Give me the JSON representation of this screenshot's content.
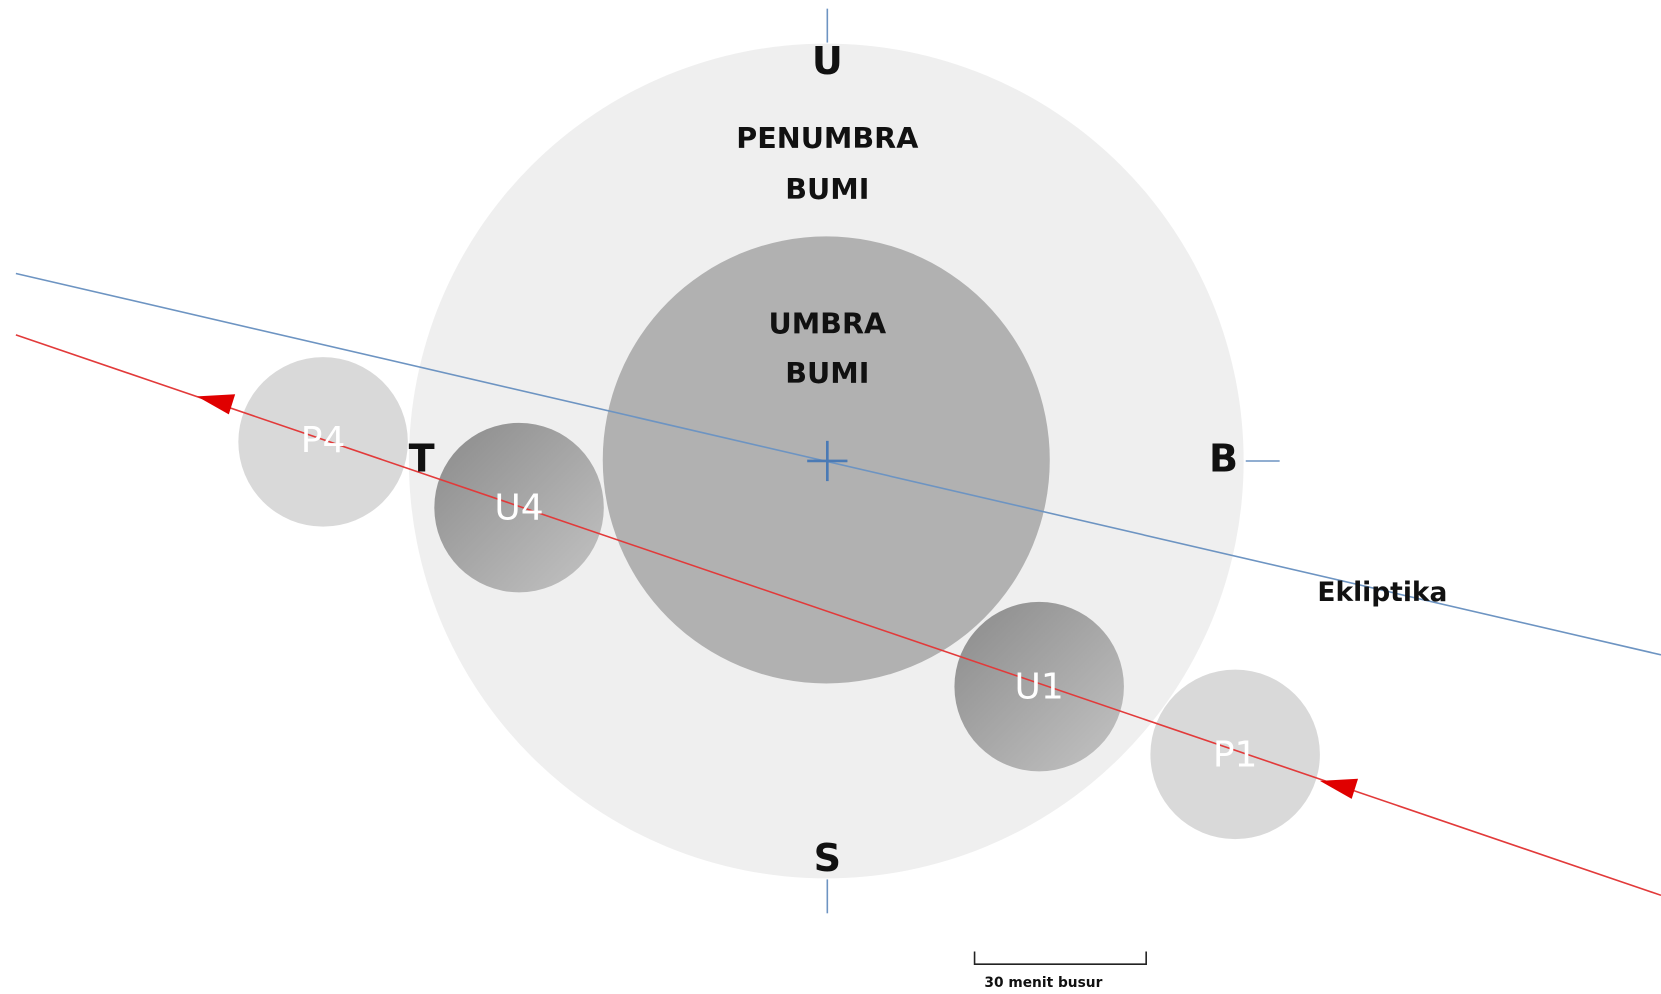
{
  "directions": {
    "north": "U",
    "south": "S",
    "east": "T",
    "west": "B"
  },
  "penumbra_label": [
    "PENUMBRA",
    "BUMI"
  ],
  "umbra_label": [
    "UMBRA",
    "BUMI"
  ],
  "moon_positions": [
    "P4",
    "U4",
    "U1",
    "P1"
  ],
  "ecliptic_label": "Ekliptika",
  "scale_label": "30 menit busur"
}
